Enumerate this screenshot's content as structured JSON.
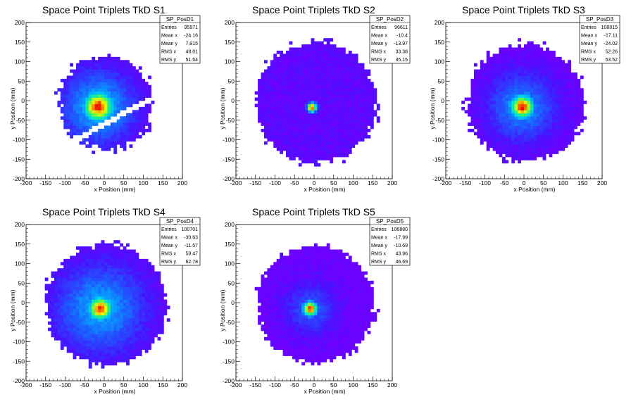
{
  "chart_data": [
    {
      "type": "heatmap",
      "title": "Space Point Triplets TkD S1",
      "xlabel": "x Position (mm)",
      "ylabel": "y Position (mm)",
      "xlim": [
        -200,
        200
      ],
      "ylim": [
        -200,
        200
      ],
      "xticks": [
        "-200",
        "-150",
        "-100",
        "-50",
        "0",
        "50",
        "100",
        "150",
        "200"
      ],
      "yticks": [
        "-200",
        "-150",
        "-100",
        "-50",
        "0",
        "50",
        "100",
        "150",
        "200"
      ],
      "stats": {
        "name": "SP_PosD1",
        "rows": [
          {
            "label": "Entries",
            "value": "95971"
          },
          {
            "label": "Mean x",
            "value": "-24.16"
          },
          {
            "label": "Mean y",
            "value": "7.815"
          },
          {
            "label": "RMS x",
            "value": "48.01"
          },
          {
            "label": "RMS y",
            "value": "51.64"
          }
        ]
      },
      "distribution": {
        "center_x": -15,
        "center_y": -15,
        "sigma": 28,
        "radius": 120,
        "gap": "diagonal band"
      }
    },
    {
      "type": "heatmap",
      "title": "Space Point Triplets TkD S2",
      "xlabel": "x Position (mm)",
      "ylabel": "y Position (mm)",
      "xlim": [
        -200,
        200
      ],
      "ylim": [
        -200,
        200
      ],
      "xticks": [
        "-200",
        "-150",
        "-100",
        "-50",
        "0",
        "50",
        "100",
        "150",
        "200"
      ],
      "yticks": [
        "-200",
        "-150",
        "-100",
        "-50",
        "0",
        "50",
        "100",
        "150",
        "200"
      ],
      "stats": {
        "name": "SP_PosD2",
        "rows": [
          {
            "label": "Entries",
            "value": "96611"
          },
          {
            "label": "Mean x",
            "value": "-10.4"
          },
          {
            "label": "Mean y",
            "value": "-13.97"
          },
          {
            "label": "RMS x",
            "value": "33.38"
          },
          {
            "label": "RMS y",
            "value": "35.15"
          }
        ]
      },
      "distribution": {
        "center_x": -5,
        "center_y": -17,
        "sigma": 9,
        "radius": 155
      }
    },
    {
      "type": "heatmap",
      "title": "Space Point Triplets TkD S3",
      "xlabel": "x Position (mm)",
      "ylabel": "y Position (mm)",
      "xlim": [
        -200,
        200
      ],
      "ylim": [
        -200,
        200
      ],
      "xticks": [
        "-200",
        "-150",
        "-100",
        "-50",
        "0",
        "50",
        "100",
        "150",
        "200"
      ],
      "yticks": [
        "-200",
        "-150",
        "-100",
        "-50",
        "0",
        "50",
        "100",
        "150",
        "200"
      ],
      "stats": {
        "name": "SP_PosD3",
        "rows": [
          {
            "label": "Entries",
            "value": "108015"
          },
          {
            "label": "Mean x",
            "value": "-17.11"
          },
          {
            "label": "Mean y",
            "value": "-24.02"
          },
          {
            "label": "RMS x",
            "value": "52.26"
          },
          {
            "label": "RMS y",
            "value": "53.52"
          }
        ]
      },
      "distribution": {
        "center_x": -5,
        "center_y": -15,
        "sigma": 22,
        "radius": 150
      }
    },
    {
      "type": "heatmap",
      "title": "Space Point Triplets TkD S4",
      "xlabel": "x Position (mm)",
      "ylabel": "y Position (mm)",
      "xlim": [
        -200,
        200
      ],
      "ylim": [
        -200,
        200
      ],
      "xticks": [
        "-200",
        "-150",
        "-100",
        "-50",
        "0",
        "50",
        "100",
        "150",
        "200"
      ],
      "yticks": [
        "-200",
        "-150",
        "-100",
        "-50",
        "0",
        "50",
        "100",
        "150",
        "200"
      ],
      "stats": {
        "name": "SP_PosD4",
        "rows": [
          {
            "label": "Entries",
            "value": "100701"
          },
          {
            "label": "Mean x",
            "value": "-30.63"
          },
          {
            "label": "Mean y",
            "value": "-11.57"
          },
          {
            "label": "RMS x",
            "value": "59.47"
          },
          {
            "label": "RMS y",
            "value": "62.78"
          }
        ]
      },
      "distribution": {
        "center_x": -10,
        "center_y": -15,
        "sigma": 22,
        "radius": 155
      }
    },
    {
      "type": "heatmap",
      "title": "Space Point Triplets TkD S5",
      "xlabel": "x Position (mm)",
      "ylabel": "y Position (mm)",
      "xlim": [
        -200,
        200
      ],
      "ylim": [
        -200,
        200
      ],
      "xticks": [
        "-200",
        "-150",
        "-100",
        "-50",
        "0",
        "50",
        "100",
        "150",
        "200"
      ],
      "yticks": [
        "-200",
        "-150",
        "-100",
        "-50",
        "0",
        "50",
        "100",
        "150",
        "200"
      ],
      "stats": {
        "name": "SP_PosD5",
        "rows": [
          {
            "label": "Entries",
            "value": "106880"
          },
          {
            "label": "Mean x",
            "value": "-17.99"
          },
          {
            "label": "Mean y",
            "value": "-10.69"
          },
          {
            "label": "RMS x",
            "value": "43.96"
          },
          {
            "label": "RMS y",
            "value": "46.69"
          }
        ]
      },
      "distribution": {
        "center_x": -10,
        "center_y": -15,
        "sigma": 14,
        "radius": 150
      }
    }
  ]
}
